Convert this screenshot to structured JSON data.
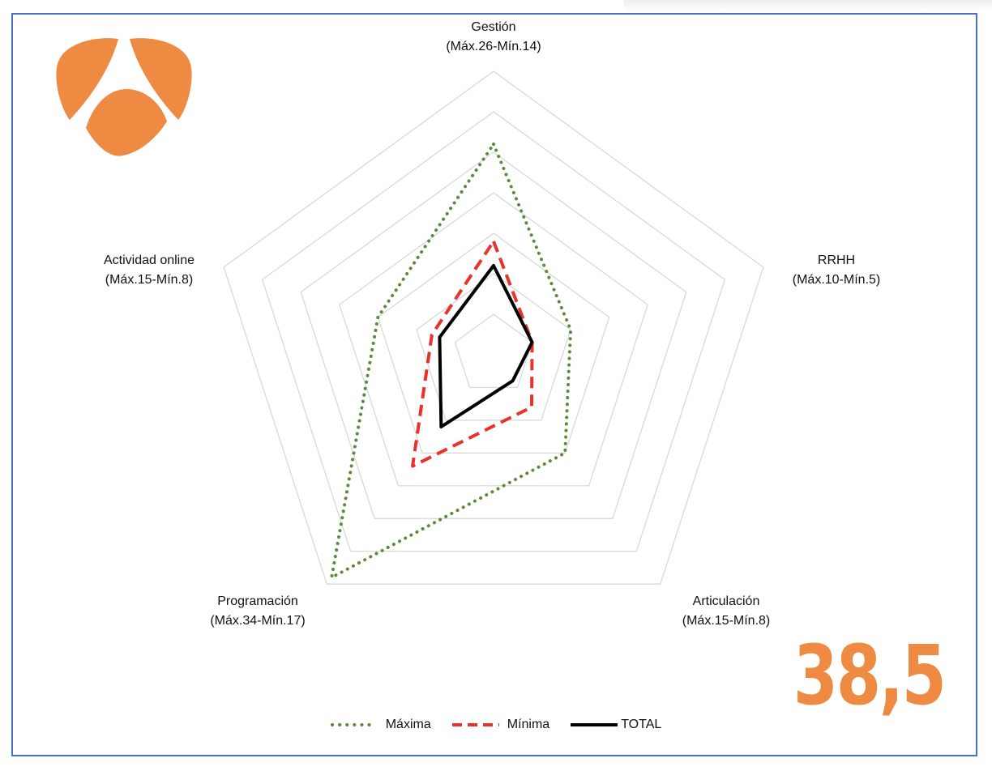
{
  "chart_data": {
    "type": "radar",
    "axes": [
      {
        "label": "Gestión",
        "range": "(Máx.26-Mín.14)"
      },
      {
        "label": "RRHH",
        "range": "(Máx.10-Mín.5)"
      },
      {
        "label": "Articulación",
        "range": "(Máx.15-Mín.8)"
      },
      {
        "label": "Programación",
        "range": "(Máx.34-Mín.17)"
      },
      {
        "label": "Actividad online",
        "range": "(Máx.15-Mín.8)"
      }
    ],
    "rmax": 35,
    "rings": 7,
    "series": [
      {
        "name": "Máxima",
        "color": "#5c8a3a",
        "style": "dotted",
        "values": [
          26,
          10,
          15,
          34,
          15
        ]
      },
      {
        "name": "Mínima",
        "color": "#e8322b",
        "style": "dashed",
        "values": [
          14,
          5,
          8,
          17,
          8
        ]
      },
      {
        "name": "TOTAL",
        "color": "#000000",
        "style": "solid",
        "values": [
          11,
          5,
          4,
          11,
          7
        ]
      }
    ]
  },
  "score": "38,5",
  "brand_color": "#ef8a43"
}
